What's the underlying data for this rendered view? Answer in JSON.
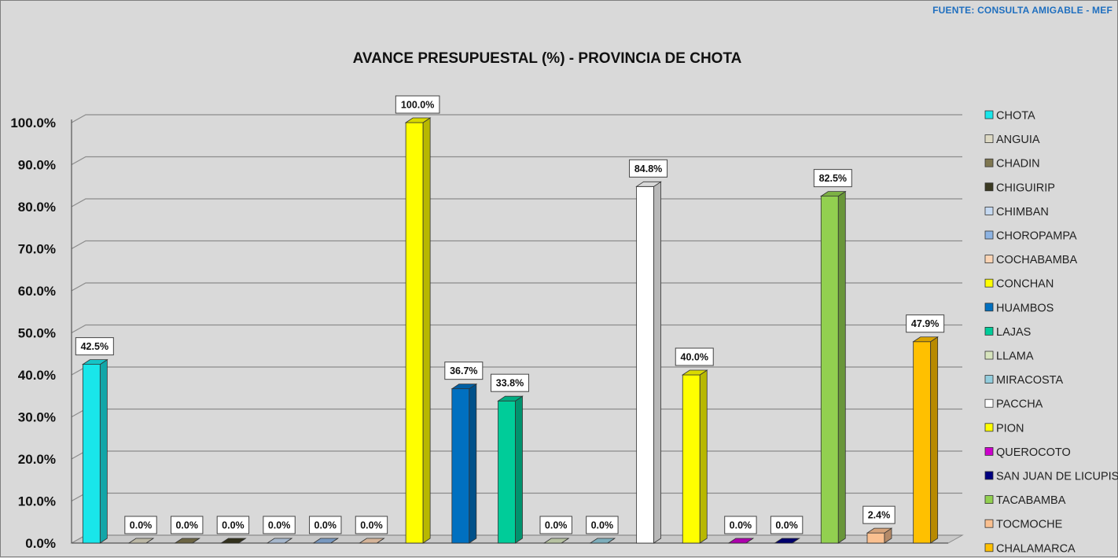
{
  "source_note": "FUENTE: CONSULTA AMIGABLE - MEF",
  "chart_data": {
    "type": "bar",
    "title": "AVANCE PRESUPUESTAL (%) - PROVINCIA DE CHOTA",
    "xlabel": "",
    "ylabel": "",
    "ylim": [
      0,
      100
    ],
    "yticks": [
      "0.0%",
      "10.0%",
      "20.0%",
      "30.0%",
      "40.0%",
      "50.0%",
      "60.0%",
      "70.0%",
      "80.0%",
      "90.0%",
      "100.0%"
    ],
    "grid": true,
    "legend_position": "right",
    "categories": [
      "CHOTA",
      "ANGUIA",
      "CHADIN",
      "CHIGUIRIP",
      "CHIMBAN",
      "CHOROPAMPA",
      "COCHABAMBA",
      "CONCHAN",
      "HUAMBOS",
      "LAJAS",
      "LLAMA",
      "MIRACOSTA",
      "PACCHA",
      "PION",
      "QUEROCOTO",
      "SAN JUAN DE LICUPIS",
      "TACABAMBA",
      "TOCMOCHE",
      "CHALAMARCA"
    ],
    "values": [
      42.5,
      0.0,
      0.0,
      0.0,
      0.0,
      0.0,
      0.0,
      100.0,
      36.7,
      33.8,
      0.0,
      0.0,
      84.8,
      40.0,
      0.0,
      0.0,
      82.5,
      2.4,
      47.9
    ],
    "value_labels": [
      "42.5%",
      "0.0%",
      "0.0%",
      "0.0%",
      "0.0%",
      "0.0%",
      "0.0%",
      "100.0%",
      "36.7%",
      "33.8%",
      "0.0%",
      "0.0%",
      "84.8%",
      "40.0%",
      "0.0%",
      "0.0%",
      "82.5%",
      "2.4%",
      "47.9%"
    ],
    "colors": [
      "#19e6ea",
      "#ddd9c3",
      "#7f7750",
      "#3b3a22",
      "#c5d9f1",
      "#8db3e2",
      "#fbd4b4",
      "#ffff00",
      "#0070c0",
      "#00cc99",
      "#d7e4bd",
      "#93cddd",
      "#ffffff",
      "#ffff00",
      "#cc00cc",
      "#000080",
      "#92d050",
      "#fac090",
      "#ffc000"
    ]
  }
}
